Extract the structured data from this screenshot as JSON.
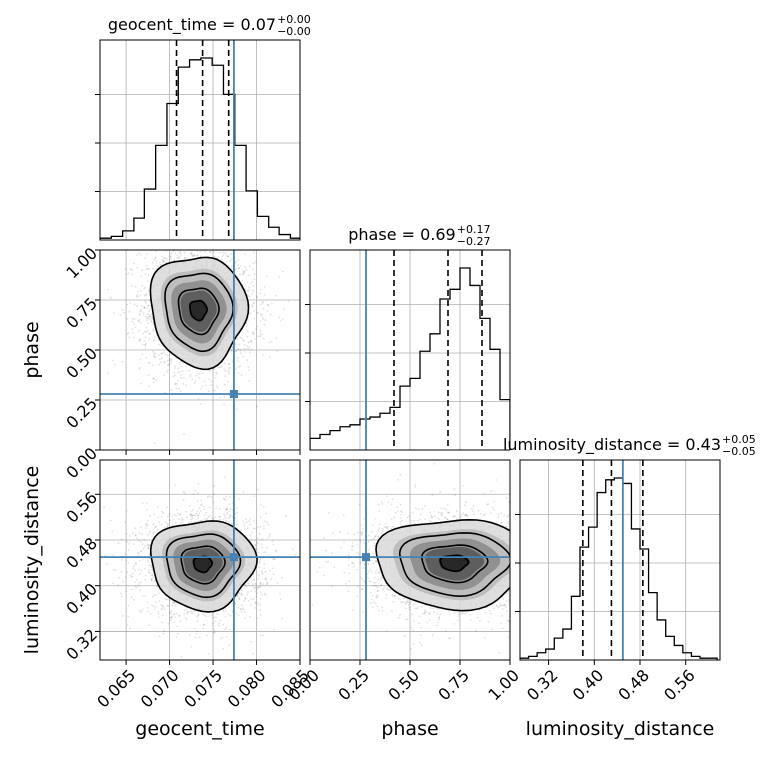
{
  "chart_data": {
    "type": "corner",
    "truth_color": "#4682b4",
    "parameters": [
      {
        "name": "geocent_time",
        "label": "geocent_time",
        "lim": [
          0.062,
          0.085
        ],
        "ticks": [
          0.065,
          0.07,
          0.075,
          0.08,
          0.085
        ],
        "tick_labels": [
          "0.065",
          "0.070",
          "0.075",
          "0.080",
          "0.085"
        ],
        "truth": 0.0774,
        "quantiles": [
          0.0708,
          0.0738,
          0.0768
        ],
        "title_main": "geocent_time = 0.07",
        "title_sup": "+0.00",
        "title_sub": "−0.00",
        "hist_bins": [
          0.062,
          0.0633,
          0.0646,
          0.0659,
          0.0671,
          0.0684,
          0.0697,
          0.071,
          0.0723,
          0.0736,
          0.0749,
          0.0762,
          0.0775,
          0.0788,
          0.0801,
          0.0814,
          0.0826,
          0.0839,
          0.0852
        ],
        "hist_counts": [
          1,
          2,
          5,
          12,
          28,
          52,
          75,
          95,
          99,
          100,
          96,
          80,
          52,
          27,
          13,
          7,
          3,
          1
        ]
      },
      {
        "name": "phase",
        "label": "phase",
        "lim": [
          0.0,
          1.0
        ],
        "ticks": [
          0.0,
          0.25,
          0.5,
          0.75,
          1.0
        ],
        "tick_labels": [
          "0.00",
          "0.25",
          "0.50",
          "0.75",
          "1.00"
        ],
        "truth": 0.28,
        "quantiles": [
          0.42,
          0.69,
          0.86
        ],
        "title_main": "phase = 0.69",
        "title_sup": "+0.17",
        "title_sub": "−0.27",
        "hist_bins": [
          0.0,
          0.05,
          0.1,
          0.15,
          0.2,
          0.25,
          0.3,
          0.35,
          0.4,
          0.45,
          0.5,
          0.55,
          0.6,
          0.65,
          0.7,
          0.75,
          0.8,
          0.85,
          0.9,
          0.95,
          1.0
        ],
        "hist_counts": [
          6,
          8,
          10,
          12,
          13,
          16,
          17,
          19,
          22,
          33,
          37,
          51,
          60,
          78,
          83,
          94,
          85,
          68,
          52,
          26
        ]
      },
      {
        "name": "luminosity_distance",
        "label": "luminosity_distance",
        "lim": [
          0.27,
          0.62
        ],
        "ticks": [
          0.32,
          0.4,
          0.48,
          0.56
        ],
        "tick_labels": [
          "0.32",
          "0.40",
          "0.48",
          "0.56"
        ],
        "truth": 0.45,
        "quantiles": [
          0.38,
          0.43,
          0.485
        ],
        "title_main": "luminosity_distance = 0.43",
        "title_sup": "+0.05",
        "title_sub": "−0.05",
        "hist_bins": [
          0.27,
          0.285,
          0.3,
          0.315,
          0.33,
          0.345,
          0.36,
          0.375,
          0.39,
          0.405,
          0.42,
          0.435,
          0.45,
          0.465,
          0.48,
          0.495,
          0.51,
          0.525,
          0.54,
          0.555,
          0.57,
          0.585,
          0.6,
          0.615
        ],
        "hist_counts": [
          1,
          2,
          4,
          6,
          12,
          17,
          35,
          62,
          73,
          92,
          99,
          100,
          97,
          72,
          61,
          37,
          22,
          13,
          8,
          4,
          2,
          1,
          1
        ]
      }
    ],
    "contours": [
      {
        "pair": [
          0,
          1
        ],
        "center": [
          0.0733,
          0.7
        ],
        "sd": [
          0.0024,
          0.12
        ],
        "rho": -0.05
      },
      {
        "pair": [
          0,
          2
        ],
        "center": [
          0.0738,
          0.438
        ],
        "sd": [
          0.0026,
          0.034
        ],
        "rho": 0.0
      },
      {
        "pair": [
          1,
          2
        ],
        "center": [
          0.72,
          0.44
        ],
        "sd": [
          0.17,
          0.034
        ],
        "rho": 0.0
      }
    ]
  }
}
